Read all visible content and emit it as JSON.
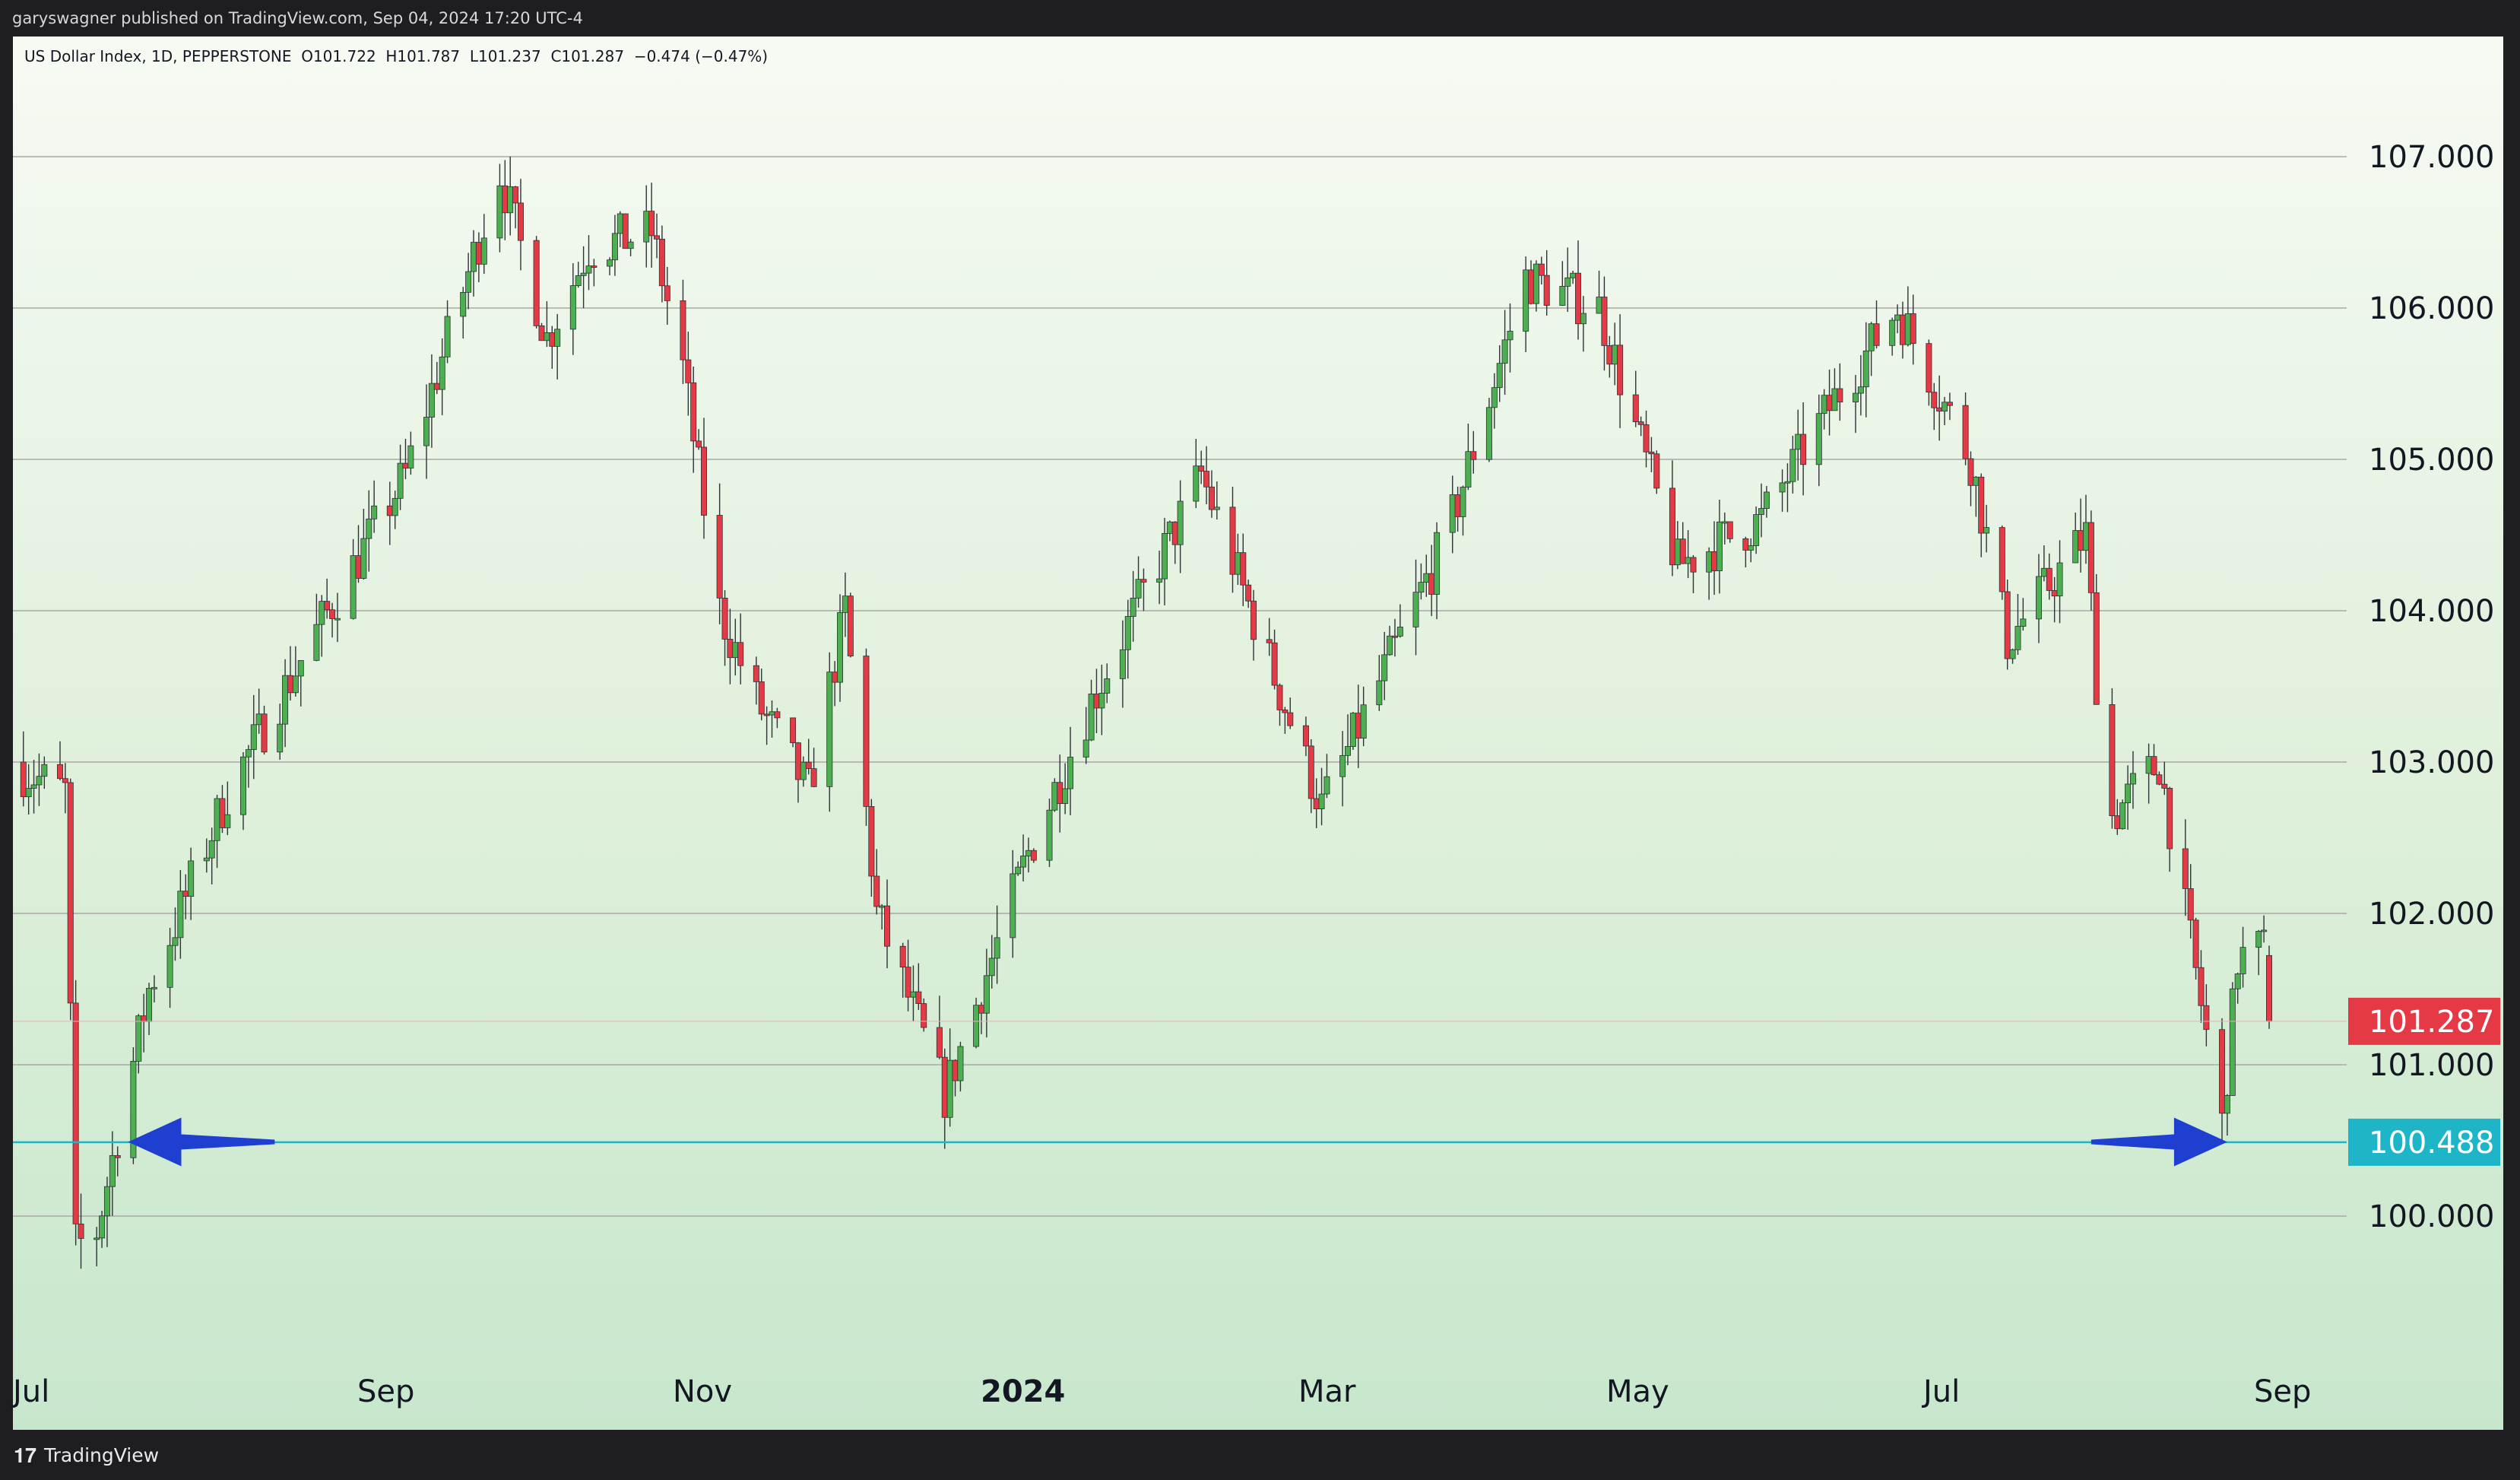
{
  "header": {
    "published": "garyswagner published on TradingView.com, Sep 04, 2024 17:20 UTC-4"
  },
  "legend": {
    "symbol": "US Dollar Index, 1D, PEPPERSTONE",
    "open": "O101.722",
    "high": "H101.787",
    "low": "L101.237",
    "close": "C101.287",
    "change": "−0.474 (−0.47%)"
  },
  "footer": {
    "logo_icon": "tradingview-logo-icon",
    "brand": "TradingView"
  },
  "colors": {
    "up": "#4caf50",
    "down": "#e53945",
    "support": "#1fb5c9",
    "arrow": "#1e3fd0",
    "grid": "#a7a9a6"
  },
  "chart_data": {
    "type": "candlestick",
    "title": "US Dollar Index, 1D, PEPPERSTONE",
    "yticks": [
      "100.000",
      "101.000",
      "102.000",
      "103.000",
      "104.000",
      "105.000",
      "106.000",
      "107.000"
    ],
    "ylim": [
      99.0,
      107.7
    ],
    "xticks": [
      "Jul",
      "Sep",
      "Nov",
      "2024",
      "Mar",
      "May",
      "Jul",
      "Sep"
    ],
    "xrange": [
      "2023-07-01",
      "2024-09-04"
    ],
    "last_price": {
      "value": 101.287,
      "label": "101.287"
    },
    "support_line": {
      "value": 100.488,
      "label": "100.488"
    },
    "arrows": [
      {
        "direction": "left",
        "from_date": "2023-08-20",
        "to_date": "2023-07-23",
        "value": 100.49
      },
      {
        "direction": "right",
        "from_date": "2024-08-01",
        "to_date": "2024-08-27",
        "value": 100.49
      }
    ],
    "anchors": [
      [
        "2023-07-01",
        103.0
      ],
      [
        "2023-07-12",
        102.8
      ],
      [
        "2023-07-14",
        99.8
      ],
      [
        "2023-07-18",
        99.9
      ],
      [
        "2023-07-28",
        101.5
      ],
      [
        "2023-08-12",
        102.8
      ],
      [
        "2023-08-28",
        103.8
      ],
      [
        "2023-09-15",
        104.9
      ],
      [
        "2023-10-03",
        106.9
      ],
      [
        "2023-10-12",
        105.8
      ],
      [
        "2023-10-20",
        106.4
      ],
      [
        "2023-11-01",
        106.5
      ],
      [
        "2023-11-07",
        105.6
      ],
      [
        "2023-11-14",
        104.0
      ],
      [
        "2023-11-21",
        103.4
      ],
      [
        "2023-12-01",
        102.8
      ],
      [
        "2023-12-08",
        104.0
      ],
      [
        "2023-12-14",
        102.0
      ],
      [
        "2023-12-27",
        100.8
      ],
      [
        "2024-01-12",
        102.4
      ],
      [
        "2024-01-24",
        103.4
      ],
      [
        "2024-02-14",
        104.9
      ],
      [
        "2024-03-08",
        102.7
      ],
      [
        "2024-04-01",
        104.5
      ],
      [
        "2024-04-16",
        106.2
      ],
      [
        "2024-04-30",
        106.0
      ],
      [
        "2024-05-15",
        104.3
      ],
      [
        "2024-05-31",
        104.6
      ],
      [
        "2024-06-14",
        105.4
      ],
      [
        "2024-06-26",
        106.0
      ],
      [
        "2024-07-10",
        105.0
      ],
      [
        "2024-07-17",
        103.8
      ],
      [
        "2024-08-01",
        104.5
      ],
      [
        "2024-08-05",
        102.6
      ],
      [
        "2024-08-15",
        103.0
      ],
      [
        "2024-08-27",
        100.6
      ],
      [
        "2024-08-30",
        101.7
      ],
      [
        "2024-09-03",
        101.76
      ]
    ],
    "last_bar": {
      "date": "2024-09-04",
      "open": 101.722,
      "high": 101.787,
      "low": 101.237,
      "close": 101.287
    }
  }
}
